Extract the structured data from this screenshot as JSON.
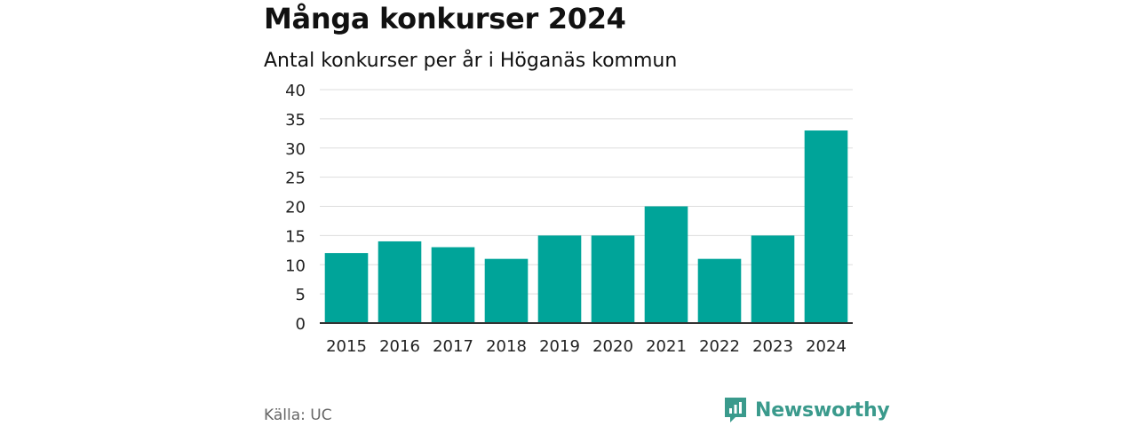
{
  "title": "Många konkurser 2024",
  "subtitle": "Antal konkurser per år i Höganäs kommun",
  "source": "Källa: UC",
  "brand": "Newsworthy",
  "colors": {
    "bar": "#00a499",
    "brand": "#3a9a8c",
    "grid": "#dddddd",
    "axis": "#333333"
  },
  "chart_data": {
    "type": "bar",
    "categories": [
      "2015",
      "2016",
      "2017",
      "2018",
      "2019",
      "2020",
      "2021",
      "2022",
      "2023",
      "2024"
    ],
    "values": [
      12,
      14,
      13,
      11,
      15,
      15,
      20,
      11,
      15,
      33
    ],
    "ylim": [
      0,
      40
    ],
    "yticks": [
      0,
      5,
      10,
      15,
      20,
      25,
      30,
      35,
      40
    ],
    "grid": true
  }
}
